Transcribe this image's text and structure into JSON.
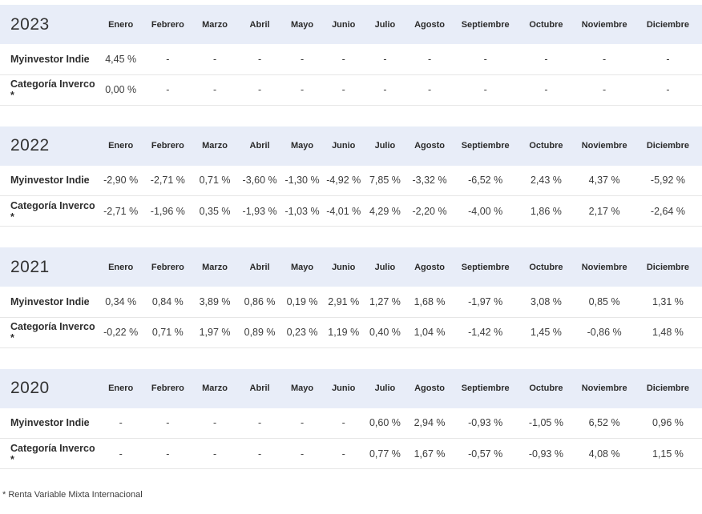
{
  "months": [
    "Enero",
    "Febrero",
    "Marzo",
    "Abril",
    "Mayo",
    "Junio",
    "Julio",
    "Agosto",
    "Septiembre",
    "Octubre",
    "Noviembre",
    "Diciembre"
  ],
  "colors": {
    "header_band": "#e8edf8",
    "row_border": "#e6e6e6",
    "text": "#333333"
  },
  "footnote": "* Renta Variable Mixta Internacional",
  "tables": [
    {
      "year": "2023",
      "rows": [
        {
          "label": "Myinvestor Indie",
          "values": [
            "4,45 %",
            "-",
            "-",
            "-",
            "-",
            "-",
            "-",
            "-",
            "-",
            "-",
            "-",
            "-"
          ]
        },
        {
          "label": "Categoría Inverco *",
          "values": [
            "0,00 %",
            "-",
            "-",
            "-",
            "-",
            "-",
            "-",
            "-",
            "-",
            "-",
            "-",
            "-"
          ]
        }
      ]
    },
    {
      "year": "2022",
      "rows": [
        {
          "label": "Myinvestor Indie",
          "values": [
            "-2,90 %",
            "-2,71 %",
            "0,71 %",
            "-3,60 %",
            "-1,30 %",
            "-4,92 %",
            "7,85 %",
            "-3,32 %",
            "-6,52 %",
            "2,43 %",
            "4,37 %",
            "-5,92 %"
          ]
        },
        {
          "label": "Categoría Inverco *",
          "values": [
            "-2,71 %",
            "-1,96 %",
            "0,35 %",
            "-1,93 %",
            "-1,03 %",
            "-4,01 %",
            "4,29 %",
            "-2,20 %",
            "-4,00 %",
            "1,86 %",
            "2,17 %",
            "-2,64 %"
          ]
        }
      ]
    },
    {
      "year": "2021",
      "rows": [
        {
          "label": "Myinvestor Indie",
          "values": [
            "0,34 %",
            "0,84 %",
            "3,89 %",
            "0,86 %",
            "0,19 %",
            "2,91 %",
            "1,27 %",
            "1,68 %",
            "-1,97 %",
            "3,08 %",
            "0,85 %",
            "1,31 %"
          ]
        },
        {
          "label": "Categoría Inverco *",
          "values": [
            "-0,22 %",
            "0,71 %",
            "1,97 %",
            "0,89 %",
            "0,23 %",
            "1,19 %",
            "0,40 %",
            "1,04 %",
            "-1,42 %",
            "1,45 %",
            "-0,86 %",
            "1,48 %"
          ]
        }
      ]
    },
    {
      "year": "2020",
      "rows": [
        {
          "label": "Myinvestor Indie",
          "values": [
            "-",
            "-",
            "-",
            "-",
            "-",
            "-",
            "0,60 %",
            "2,94 %",
            "-0,93 %",
            "-1,05 %",
            "6,52 %",
            "0,96 %"
          ]
        },
        {
          "label": "Categoría Inverco *",
          "values": [
            "-",
            "-",
            "-",
            "-",
            "-",
            "-",
            "0,77 %",
            "1,67 %",
            "-0,57 %",
            "-0,93 %",
            "4,08 %",
            "1,15 %"
          ]
        }
      ]
    }
  ]
}
